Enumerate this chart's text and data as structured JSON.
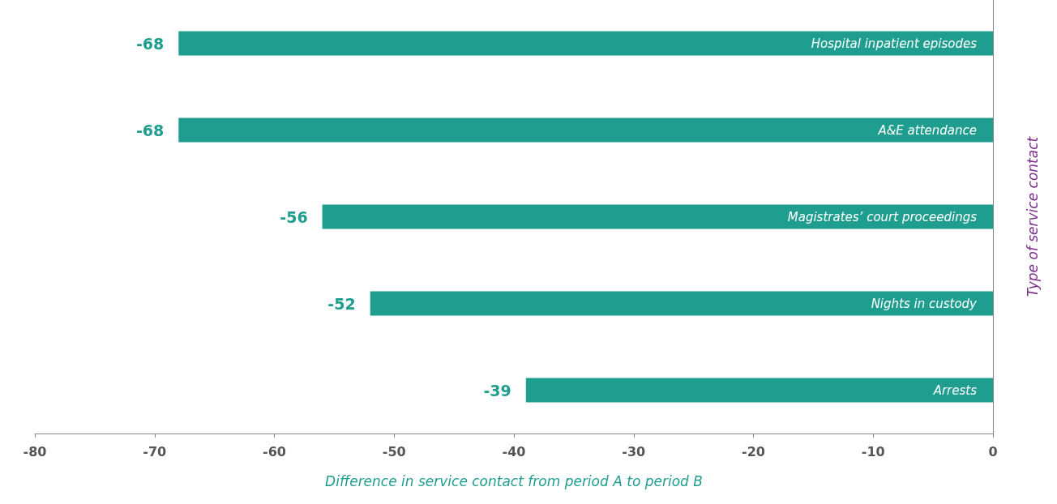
{
  "chart_data": {
    "type": "bar",
    "orientation": "horizontal",
    "xlabel": "Difference in service contact from period A to period B",
    "ylabel": "Type of service contact",
    "categories": [
      "Hospital inpatient episodes",
      "A&E attendance",
      "Magistrates’ court proceedings",
      "Nights in custody",
      "Arrests"
    ],
    "values": [
      -68,
      -68,
      -56,
      -52,
      -39
    ],
    "color": "#1f9e8f",
    "xlim": [
      -80,
      0
    ],
    "xticks": [
      -80,
      -70,
      -60,
      -50,
      -40,
      -30,
      -20,
      -10,
      0
    ],
    "data_labels": true
  }
}
